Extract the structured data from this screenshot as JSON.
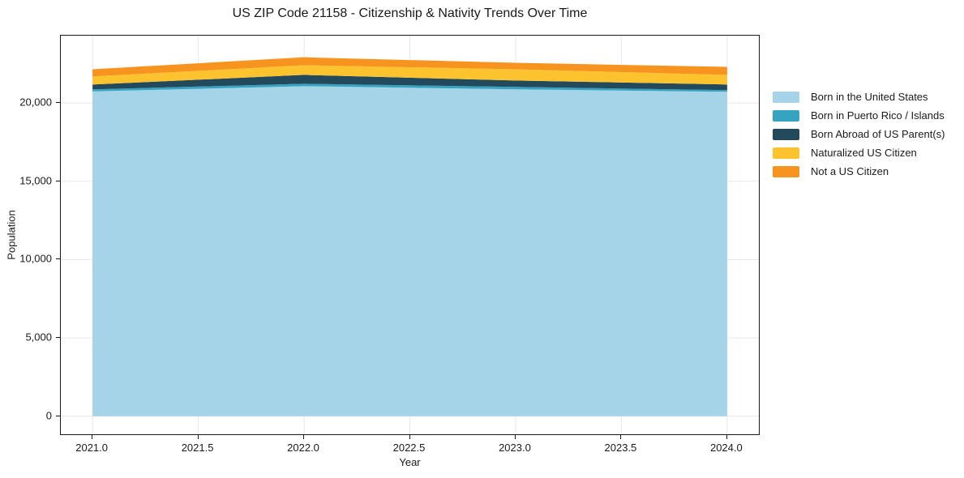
{
  "chart_data": {
    "type": "area",
    "stacked": true,
    "title": "US ZIP Code 21158 - Citizenship & Nativity Trends Over Time",
    "xlabel": "Year",
    "ylabel": "Population",
    "x": [
      2021,
      2022,
      2023,
      2024
    ],
    "series": [
      {
        "name": "Born in the United States",
        "color": "#a5d3e8",
        "values": [
          20740,
          21075,
          20870,
          20715
        ]
      },
      {
        "name": "Born in Puerto Rico / Islands",
        "color": "#36a3c1",
        "values": [
          130,
          155,
          155,
          105
        ]
      },
      {
        "name": "Born Abroad of US Parent(s)",
        "color": "#23495c",
        "values": [
          310,
          565,
          410,
          360
        ]
      },
      {
        "name": "Naturalized US Citizen",
        "color": "#fcc32e",
        "values": [
          515,
          615,
          720,
          615
        ]
      },
      {
        "name": "Not a US Citizen",
        "color": "#f7941f",
        "values": [
          460,
          510,
          410,
          510
        ]
      }
    ],
    "totals": [
      22155,
      22920,
      22565,
      22305
    ],
    "xlim": [
      2020.85,
      2024.15
    ],
    "ylim": [
      -1150,
      24300
    ],
    "xticks": {
      "values": [
        2021.0,
        2021.5,
        2022.0,
        2022.5,
        2023.0,
        2023.5,
        2024.0
      ],
      "labels": [
        "2021.0",
        "2021.5",
        "2022.0",
        "2022.5",
        "2023.0",
        "2023.5",
        "2024.0"
      ]
    },
    "yticks": {
      "values": [
        0,
        5000,
        10000,
        15000,
        20000
      ],
      "labels": [
        "0",
        "5,000",
        "10,000",
        "15,000",
        "20,000"
      ]
    },
    "grid": true,
    "grid_color": "#e8e8e8",
    "spine_color": "#1a1a1a",
    "legend_position": "right"
  }
}
